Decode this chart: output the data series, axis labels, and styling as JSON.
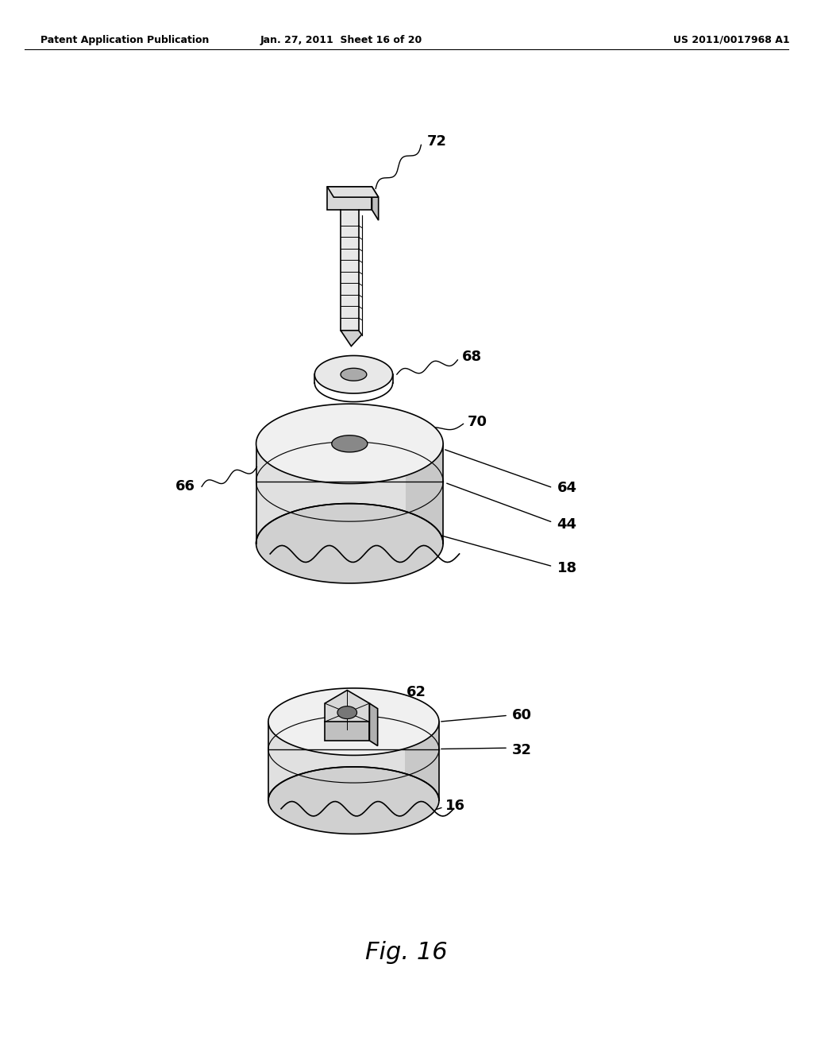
{
  "header_left": "Patent Application Publication",
  "header_mid": "Jan. 27, 2011  Sheet 16 of 20",
  "header_right": "US 2011/0017968 A1",
  "fig_label": "Fig. 16",
  "background_color": "#ffffff",
  "line_color": "#000000"
}
